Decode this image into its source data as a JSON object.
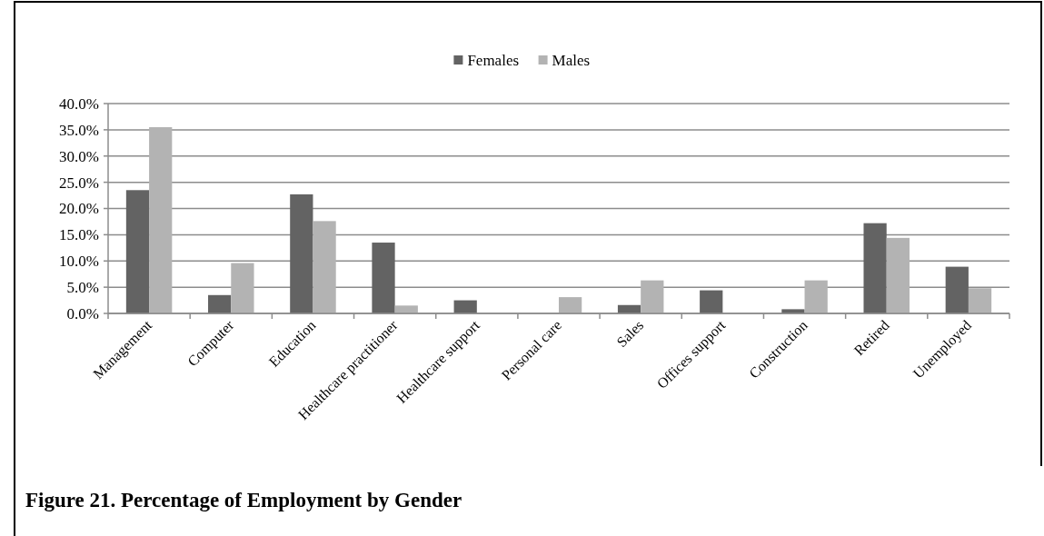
{
  "chart_data": {
    "type": "bar",
    "title": "Figure 21. Percentage of Employment by Gender",
    "categories": [
      "Management",
      "Computer",
      "Education",
      "Healthcare practitioner",
      "Healthcare support",
      "Personal care",
      "Sales",
      "Offices support",
      "Construction",
      "Retired",
      "Unemployed"
    ],
    "series": [
      {
        "name": "Females",
        "color": "#636363",
        "values": [
          23.5,
          3.5,
          22.7,
          13.5,
          2.5,
          0,
          1.6,
          4.4,
          0.8,
          17.2,
          8.9
        ]
      },
      {
        "name": "Males",
        "color": "#b3b3b3",
        "values": [
          35.5,
          9.6,
          17.6,
          1.5,
          0,
          3.1,
          6.3,
          0,
          6.3,
          14.4,
          4.8
        ]
      }
    ],
    "ylim": [
      0,
      40
    ],
    "yticks": [
      {
        "value": 0,
        "label": "0.0%"
      },
      {
        "value": 5,
        "label": "5.0%"
      },
      {
        "value": 10,
        "label": "10.0%"
      },
      {
        "value": 15,
        "label": "15.0%"
      },
      {
        "value": 20,
        "label": "20.0%"
      },
      {
        "value": 25,
        "label": "25.0%"
      },
      {
        "value": 30,
        "label": "30.0%"
      },
      {
        "value": 35,
        "label": "35.0%"
      },
      {
        "value": 40,
        "label": "40.0%"
      }
    ],
    "grid": "y",
    "legend": "top"
  }
}
